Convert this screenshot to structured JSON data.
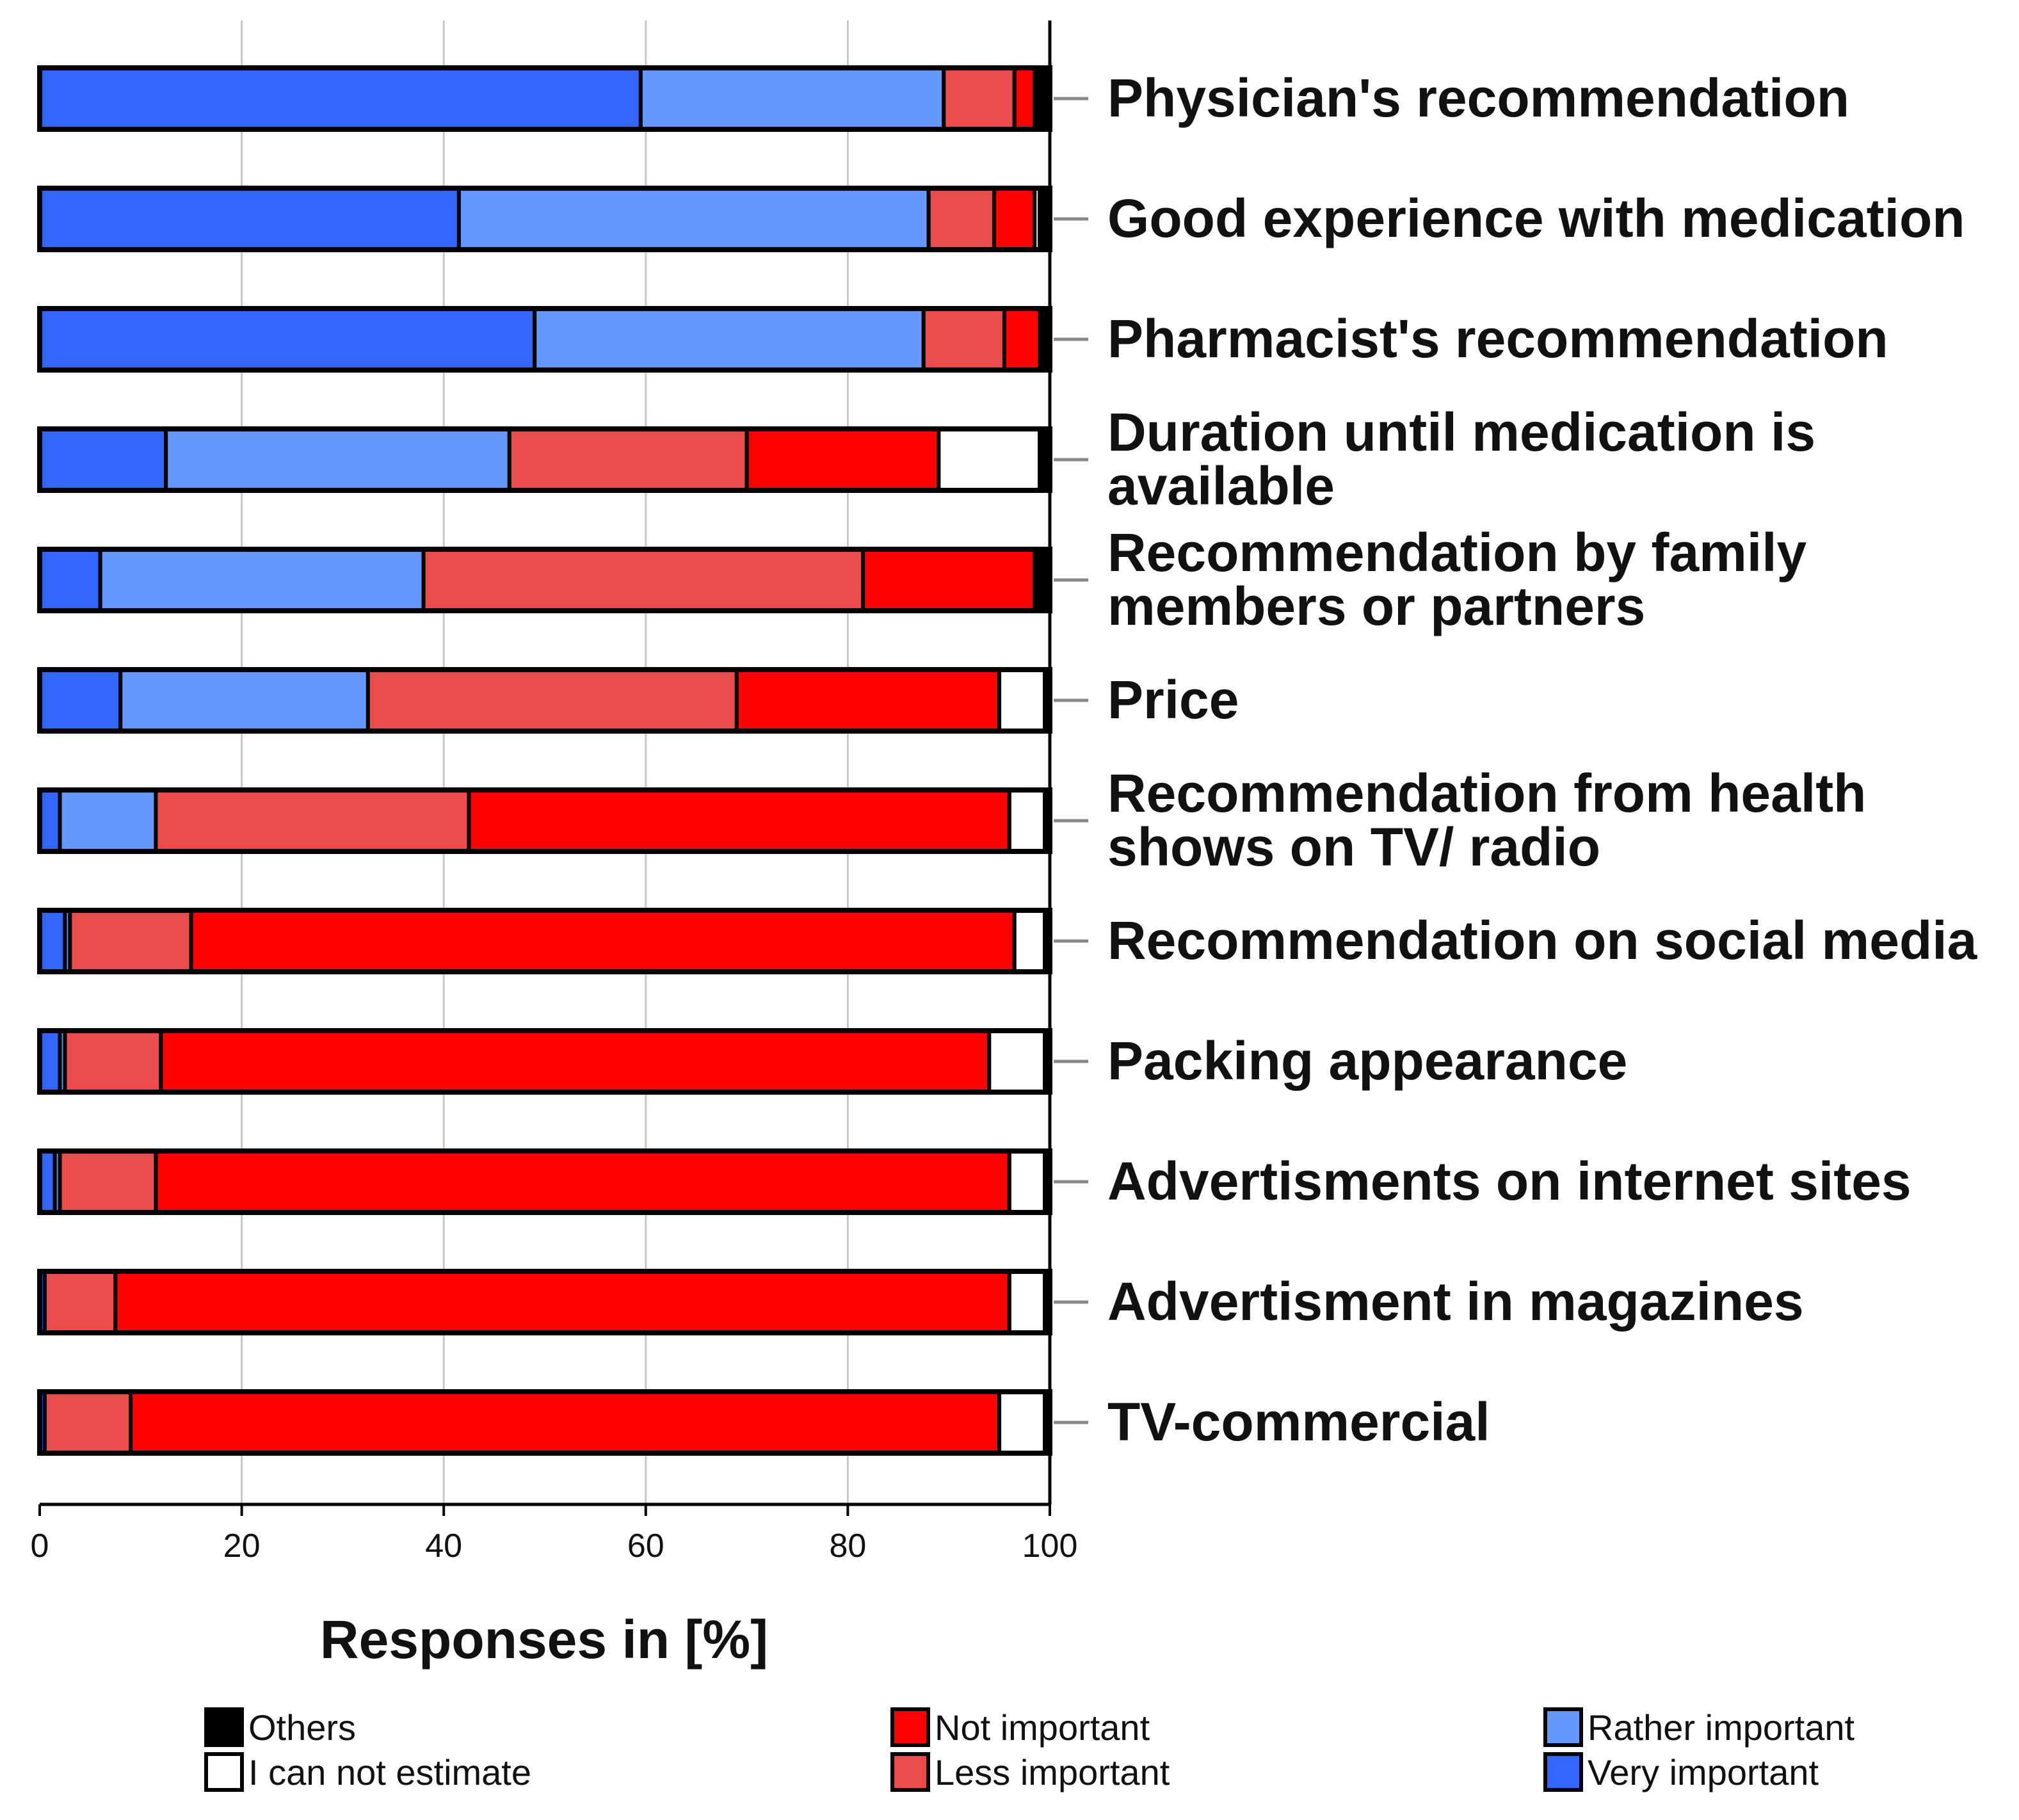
{
  "chart_data": {
    "type": "bar",
    "orientation": "horizontal",
    "stacked": true,
    "xlabel": "Responses in [%]",
    "ylabel": "",
    "xlim": [
      0,
      100
    ],
    "xticks": [
      0,
      20,
      40,
      60,
      80,
      100
    ],
    "grid": true,
    "legend_position": "bottom",
    "categories": [
      "Physician's recommendation",
      "Good experience with medication",
      "Pharmacist's recommendation",
      "Duration until medication is available",
      "Recommendation by family members or partners",
      "Price",
      "Recommendation from health shows on TV/ radio",
      "Recommendation on social media",
      "Packing appearance",
      "Advertisments on internet sites",
      "Advertisment in magazines",
      "TV-commercial"
    ],
    "category_lines": [
      [
        "Physician's recommendation"
      ],
      [
        "Good experience with medication"
      ],
      [
        "Pharmacist's recommendation"
      ],
      [
        "Duration until medication is",
        "available"
      ],
      [
        "Recommendation by family",
        "members or partners"
      ],
      [
        "Price"
      ],
      [
        "Recommendation from health",
        "shows on TV/ radio"
      ],
      [
        "Recommendation on social media"
      ],
      [
        "Packing appearance"
      ],
      [
        "Advertisments on internet sites"
      ],
      [
        "Advertisment in magazines"
      ],
      [
        "TV-commercial"
      ]
    ],
    "series": [
      {
        "name": "Very important",
        "color": "#3366ff",
        "values": [
          59.5,
          41.5,
          49.0,
          12.5,
          6.0,
          8.0,
          2.0,
          2.5,
          2.0,
          1.5,
          0.5,
          0.5
        ]
      },
      {
        "name": "Rather important",
        "color": "#6699ff",
        "values": [
          30.0,
          46.5,
          38.5,
          34.0,
          32.0,
          24.5,
          9.5,
          0.5,
          0.5,
          0.5,
          0.0,
          0.0
        ]
      },
      {
        "name": "Less important",
        "color": "#e84c4c",
        "values": [
          7.0,
          6.5,
          8.0,
          23.5,
          43.5,
          36.5,
          31.0,
          12.0,
          9.5,
          9.5,
          7.0,
          8.5
        ]
      },
      {
        "name": "Not important",
        "color": "#ff0000",
        "values": [
          2.0,
          4.0,
          3.5,
          19.0,
          17.0,
          26.0,
          53.5,
          81.5,
          82.0,
          84.5,
          88.5,
          86.0
        ]
      },
      {
        "name": "I can not estimate",
        "color": "#ffffff",
        "values": [
          0.0,
          0.5,
          0.0,
          10.0,
          0.0,
          4.5,
          3.5,
          3.0,
          5.5,
          3.5,
          3.5,
          4.5
        ]
      },
      {
        "name": "Others",
        "color": "#000000",
        "values": [
          1.5,
          1.0,
          1.0,
          1.0,
          1.5,
          0.5,
          0.5,
          0.5,
          0.5,
          0.5,
          0.5,
          0.5
        ]
      }
    ],
    "legend": {
      "columns": [
        [
          "Others",
          "I can not estimate"
        ],
        [
          "Not important",
          "Less important"
        ],
        [
          "Rather important",
          "Very important"
        ]
      ]
    }
  }
}
